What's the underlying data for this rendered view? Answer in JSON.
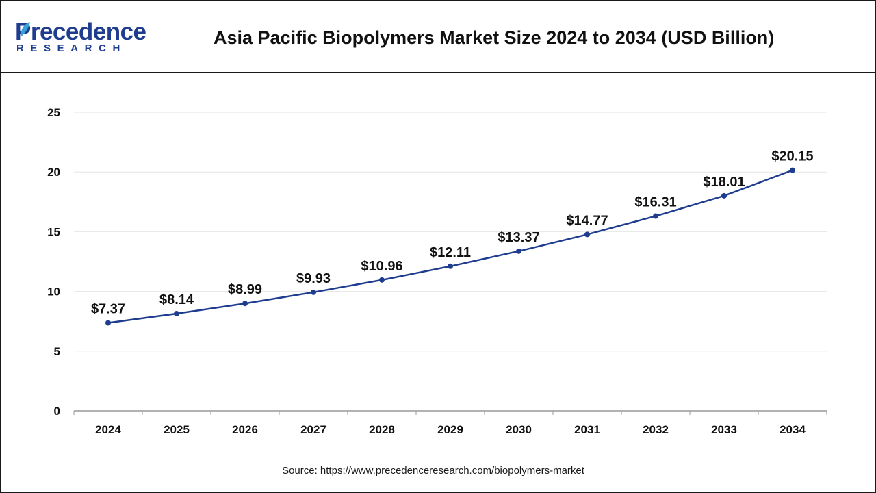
{
  "header": {
    "logo_main": "Precedence",
    "logo_sub": "RESEARCH",
    "title": "Asia Pacific Biopolymers Market Size 2024 to 2034 (USD Billion)"
  },
  "source": "Source: https://www.precedenceresearch.com/biopolymers-market",
  "colors": {
    "line": "#1f3d8f",
    "brand": "#1f3d8f",
    "grid": "#e6e6e6",
    "axis": "#999999"
  },
  "chart_data": {
    "type": "line",
    "title": "Asia Pacific Biopolymers Market Size 2024 to 2034 (USD Billion)",
    "categories": [
      "2024",
      "2025",
      "2026",
      "2027",
      "2028",
      "2029",
      "2030",
      "2031",
      "2032",
      "2033",
      "2034"
    ],
    "series": [
      {
        "values": [
          7.37,
          8.14,
          8.99,
          9.93,
          10.96,
          12.11,
          13.37,
          14.77,
          16.31,
          18.01,
          20.15
        ],
        "labels": [
          "$7.37",
          "$8.14",
          "$8.99",
          "$9.93",
          "$10.96",
          "$12.11",
          "$13.37",
          "$14.77",
          "$16.31",
          "$18.01",
          "$20.15"
        ]
      }
    ],
    "yticks": [
      "0",
      "5",
      "10",
      "15",
      "20",
      "25"
    ],
    "ylim": [
      0,
      25
    ],
    "grid": true,
    "legend": "none",
    "xlabel": "",
    "ylabel": ""
  }
}
